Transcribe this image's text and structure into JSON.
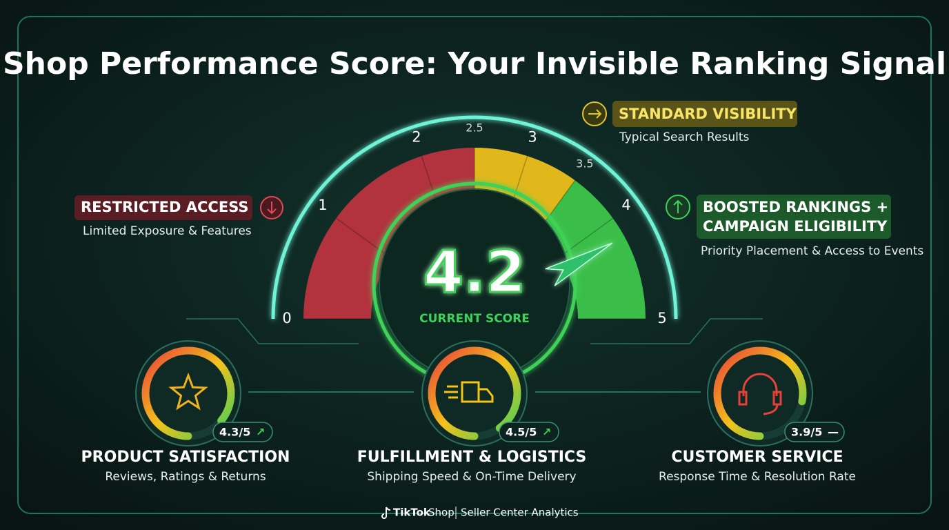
{
  "title": "Shop Performance Score: Your Invisible Ranking Signal",
  "gauge": {
    "min": 0,
    "max": 5,
    "ticks": [
      0,
      1,
      2,
      2.5,
      3,
      3.5,
      4,
      5
    ],
    "zones": [
      {
        "end": 2.5,
        "color": "#c0343f"
      },
      {
        "end": 3.5,
        "color": "#f2c41a"
      },
      {
        "end": 5,
        "color": "#3fcb4c"
      }
    ],
    "score": 4.2,
    "score_label": "CURRENT SCORE"
  },
  "tiers": [
    {
      "title": "RESTRICTED ACCESS",
      "subtitle": "Limited Exposure & Features"
    },
    {
      "title": "STANDARD VISIBILITY",
      "subtitle": "Typical Search Results"
    },
    {
      "title": "BOOSTED RANKINGS +",
      "title_line2": "CAMPAIGN ELIGIBILITY",
      "subtitle": "Priority Placement & Access to Events"
    }
  ],
  "metrics": [
    {
      "title": "PRODUCT SATISFACTION",
      "subtitle": "Reviews, Ratings & Returns",
      "value": 4.3,
      "value_label": "4.3/5",
      "trend": "↗"
    },
    {
      "title": "FULFILLMENT & LOGISTICS",
      "subtitle": "Shipping Speed & On-Time Delivery",
      "value": 4.5,
      "value_label": "4.5/5",
      "trend": "↗"
    },
    {
      "title": "CUSTOMER SERVICE",
      "subtitle": "Response Time & Resolution Rate",
      "value": 3.9,
      "value_label": "3.9/5",
      "trend": "—"
    }
  ],
  "footer": {
    "brand": "TikTok",
    "product": "Shop",
    "caption": "Seller Center Analytics"
  }
}
